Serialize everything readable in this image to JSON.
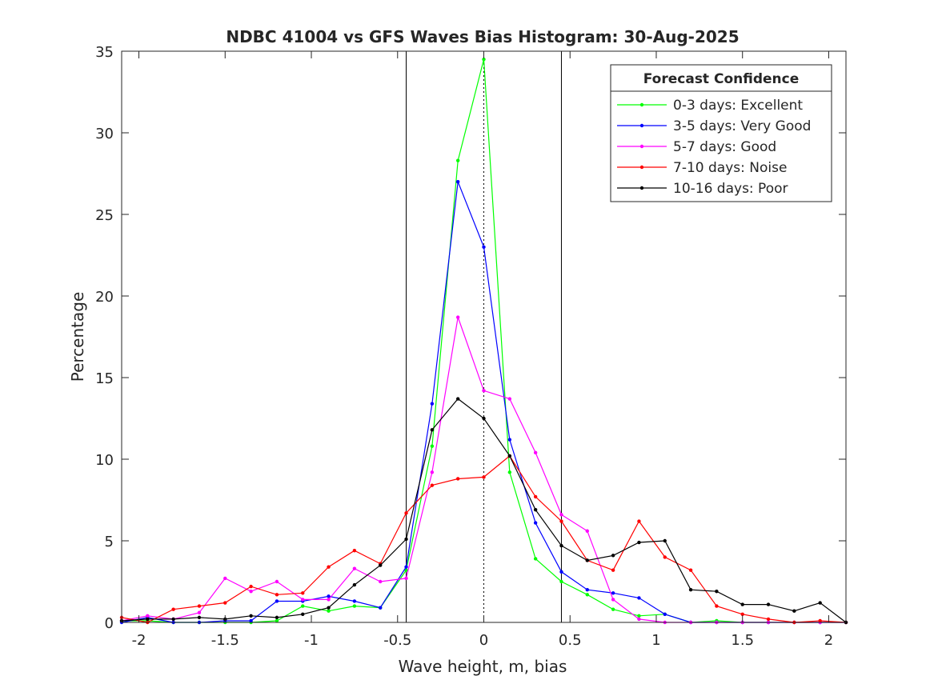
{
  "chart_data": {
    "type": "line",
    "title": "NDBC 41004 vs GFS Waves Bias Histogram: 30-Aug-2025",
    "xlabel": "Wave height, m, bias",
    "ylabel": "Percentage",
    "xlim": [
      -2.1,
      2.1
    ],
    "ylim": [
      0,
      35
    ],
    "xticks": [
      -2,
      -1.5,
      -1,
      -0.5,
      0,
      0.5,
      1,
      1.5,
      2
    ],
    "xtick_labels": [
      "-2",
      "-1.5",
      "-1",
      "-0.5",
      "0",
      "0.5",
      "1",
      "1.5",
      "2"
    ],
    "yticks": [
      0,
      5,
      10,
      15,
      20,
      25,
      30,
      35
    ],
    "ytick_labels": [
      "0",
      "5",
      "10",
      "15",
      "20",
      "25",
      "30",
      "35"
    ],
    "grid": false,
    "vertical_lines": [
      {
        "x": -0.45,
        "style": "solid"
      },
      {
        "x": 0,
        "style": "dotted"
      },
      {
        "x": 0.45,
        "style": "solid"
      }
    ],
    "legend": {
      "title": "Forecast Confidence",
      "position": "top-right"
    },
    "x": [
      -2.1,
      -1.95,
      -1.8,
      -1.65,
      -1.5,
      -1.35,
      -1.2,
      -1.05,
      -0.9,
      -0.75,
      -0.6,
      -0.45,
      -0.3,
      -0.15,
      0,
      0.15,
      0.3,
      0.45,
      0.6,
      0.75,
      0.9,
      1.05,
      1.2,
      1.35,
      1.5,
      1.65,
      1.8,
      1.95,
      2.1
    ],
    "series": [
      {
        "name": "0-3 days: Excellent",
        "color": "#00ff00",
        "values": [
          0.1,
          0.1,
          0.0,
          0.0,
          0.0,
          0.0,
          0.1,
          1.0,
          0.7,
          1.0,
          0.9,
          3.2,
          10.8,
          28.3,
          34.5,
          9.2,
          3.9,
          2.5,
          1.7,
          0.8,
          0.4,
          0.5,
          0.0,
          0.1,
          0.0,
          0.0,
          0.0,
          0.0,
          0.0
        ]
      },
      {
        "name": "3-5 days: Very Good",
        "color": "#0000ff",
        "values": [
          0.0,
          0.3,
          0.0,
          0.0,
          0.1,
          0.1,
          1.3,
          1.3,
          1.6,
          1.3,
          0.9,
          3.4,
          13.4,
          27.0,
          23.0,
          11.2,
          6.1,
          3.1,
          2.0,
          1.8,
          1.5,
          0.5,
          0.0,
          0.0,
          0.0,
          0.0,
          0.0,
          0.0,
          0.0
        ]
      },
      {
        "name": "5-7 days: Good",
        "color": "#ff00ff",
        "values": [
          0.1,
          0.4,
          0.2,
          0.6,
          2.7,
          1.9,
          2.5,
          1.4,
          1.4,
          3.3,
          2.5,
          2.7,
          9.2,
          18.7,
          14.2,
          13.7,
          10.4,
          6.6,
          5.6,
          1.4,
          0.2,
          0.0,
          0.0,
          0.0,
          0.0,
          0.0,
          0.0,
          0.0,
          0.0
        ]
      },
      {
        "name": "7-10 days: Noise",
        "color": "#ff0000",
        "values": [
          0.3,
          0.0,
          0.8,
          1.0,
          1.2,
          2.2,
          1.7,
          1.8,
          3.4,
          4.4,
          3.6,
          6.7,
          8.4,
          8.8,
          8.9,
          10.2,
          7.7,
          6.2,
          3.8,
          3.2,
          6.2,
          4.0,
          3.2,
          1.0,
          0.5,
          0.2,
          0.0,
          0.1,
          0.0
        ]
      },
      {
        "name": "10-16 days: Poor",
        "color": "#000000",
        "values": [
          0.1,
          0.2,
          0.2,
          0.3,
          0.2,
          0.4,
          0.3,
          0.5,
          0.9,
          2.3,
          3.5,
          5.1,
          11.8,
          13.7,
          12.5,
          10.2,
          6.9,
          4.7,
          3.8,
          4.1,
          4.9,
          5.0,
          2.0,
          1.9,
          1.1,
          1.1,
          0.7,
          1.2,
          0.0
        ]
      }
    ]
  }
}
